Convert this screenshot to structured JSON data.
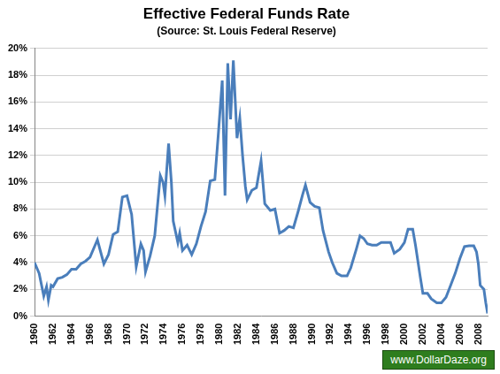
{
  "chart_data": {
    "type": "line",
    "title": "Effective Federal Funds Rate",
    "subtitle": "(Source: St. Louis Federal Reserve)",
    "annotations": [
      "www.DollarDaze.org"
    ],
    "x": [
      1960.0,
      1960.5,
      1961.0,
      1961.3,
      1961.5,
      1961.8,
      1962.0,
      1962.5,
      1963.0,
      1963.5,
      1964.0,
      1964.5,
      1965.0,
      1965.5,
      1966.0,
      1966.8,
      1967.5,
      1968.0,
      1968.5,
      1969.0,
      1969.5,
      1970.0,
      1970.5,
      1971.0,
      1971.5,
      1971.8,
      1972.0,
      1972.5,
      1973.0,
      1973.6,
      1973.9,
      1974.1,
      1974.5,
      1974.8,
      1975.0,
      1975.5,
      1975.7,
      1976.0,
      1976.5,
      1977.0,
      1977.5,
      1978.0,
      1978.5,
      1979.0,
      1979.5,
      1979.9,
      1980.3,
      1980.6,
      1980.9,
      1981.2,
      1981.5,
      1981.9,
      1982.2,
      1982.5,
      1982.8,
      1983.0,
      1983.5,
      1984.0,
      1984.5,
      1984.9,
      1985.5,
      1986.0,
      1986.5,
      1987.0,
      1987.5,
      1988.0,
      1988.5,
      1989.0,
      1989.3,
      1989.8,
      1990.3,
      1990.8,
      1991.2,
      1991.8,
      1992.2,
      1992.7,
      1993.2,
      1993.8,
      1994.2,
      1994.8,
      1995.2,
      1995.6,
      1996.0,
      1996.5,
      1997.0,
      1997.5,
      1998.0,
      1998.5,
      1998.9,
      1999.5,
      2000.0,
      2000.4,
      2000.9,
      2001.2,
      2001.7,
      2002.0,
      2002.5,
      2002.9,
      2003.5,
      2004.0,
      2004.5,
      2005.0,
      2005.5,
      2006.0,
      2006.5,
      2007.0,
      2007.5,
      2007.8,
      2008.0,
      2008.2,
      2008.6,
      2008.8,
      2009.0
    ],
    "values": [
      4.0,
      3.2,
      1.5,
      2.2,
      1.2,
      2.3,
      2.2,
      2.8,
      2.9,
      3.1,
      3.5,
      3.5,
      3.9,
      4.1,
      4.4,
      5.7,
      3.9,
      4.6,
      6.1,
      6.3,
      8.9,
      9.0,
      7.6,
      3.7,
      5.4,
      4.9,
      3.3,
      4.5,
      6.0,
      10.5,
      10.0,
      9.0,
      12.9,
      10.0,
      7.1,
      5.5,
      6.2,
      4.9,
      5.3,
      4.6,
      5.4,
      6.7,
      7.8,
      10.1,
      10.2,
      13.8,
      17.6,
      9.0,
      18.9,
      14.7,
      19.1,
      13.3,
      14.8,
      12.0,
      9.7,
      8.7,
      9.4,
      9.6,
      11.6,
      8.4,
      7.9,
      8.0,
      6.2,
      6.4,
      6.7,
      6.6,
      7.8,
      9.1,
      9.8,
      8.5,
      8.2,
      8.1,
      6.4,
      4.8,
      4.0,
      3.2,
      3.0,
      3.0,
      3.6,
      5.0,
      6.0,
      5.8,
      5.4,
      5.3,
      5.3,
      5.5,
      5.5,
      5.5,
      4.7,
      5.0,
      5.5,
      6.5,
      6.5,
      5.3,
      3.0,
      1.7,
      1.7,
      1.3,
      1.0,
      1.0,
      1.4,
      2.3,
      3.2,
      4.3,
      5.2,
      5.25,
      5.25,
      4.8,
      3.9,
      2.3,
      2.0,
      1.0,
      0.2
    ],
    "color": "#4a7ebb",
    "xlim": [
      1960,
      2009
    ],
    "xticks": [
      1960,
      1962,
      1964,
      1966,
      1968,
      1970,
      1972,
      1974,
      1976,
      1978,
      1980,
      1982,
      1984,
      1986,
      1988,
      1990,
      1992,
      1994,
      1996,
      1998,
      2000,
      2002,
      2004,
      2006,
      2008
    ],
    "ylim": [
      0,
      20
    ],
    "yticks": [
      {
        "value": 0,
        "label": "0%"
      },
      {
        "value": 2,
        "label": "2%"
      },
      {
        "value": 4,
        "label": "4%"
      },
      {
        "value": 6,
        "label": "6%"
      },
      {
        "value": 8,
        "label": "8%"
      },
      {
        "value": 10,
        "label": "10%"
      },
      {
        "value": 12,
        "label": "12%"
      },
      {
        "value": 14,
        "label": "14%"
      },
      {
        "value": 16,
        "label": "16%"
      },
      {
        "value": 18,
        "label": "18%"
      },
      {
        "value": 20,
        "label": "20%"
      }
    ],
    "grid": true
  }
}
